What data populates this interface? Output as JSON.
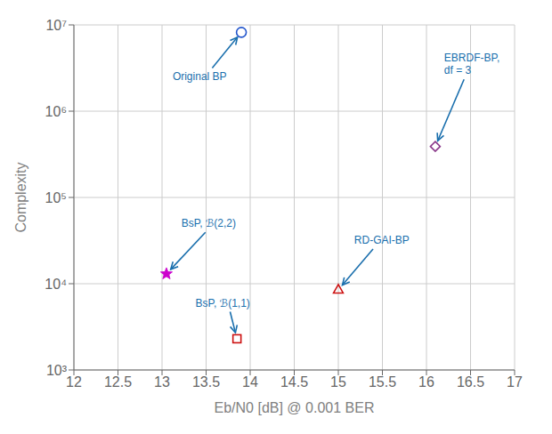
{
  "chart_data": {
    "type": "scatter",
    "xlabel": "Eb/N0 [dB] @ 0.001 BER",
    "ylabel": "Complexity",
    "log": "y",
    "grid": true,
    "xlim": [
      12,
      17
    ],
    "xticks": [
      12,
      12.5,
      13,
      13.5,
      14,
      14.5,
      15,
      15.5,
      16,
      16.5,
      17
    ],
    "ylim": [
      1000,
      10000000
    ],
    "yticks": [
      {
        "value": 1000,
        "label": "10³"
      },
      {
        "value": 10000,
        "label": "10⁴"
      },
      {
        "value": 100000,
        "label": "10⁵"
      },
      {
        "value": 1000000,
        "label": "10⁶"
      },
      {
        "value": 10000000,
        "label": "10⁷"
      }
    ],
    "points": [
      {
        "x": 13.9,
        "y": 8200000,
        "color": "#2255cc",
        "marker": "circle-open"
      },
      {
        "x": 16.1,
        "y": 390000,
        "color": "#8b3a8b",
        "marker": "diamond-open"
      },
      {
        "x": 13.05,
        "y": 13000,
        "color": "#cc00cc",
        "marker": "star"
      },
      {
        "x": 13.85,
        "y": 2300,
        "color": "#cc1111",
        "marker": "square-open"
      },
      {
        "x": 15.0,
        "y": 8500,
        "color": "#cc1111",
        "marker": "triangle-open"
      }
    ],
    "annotations": [
      {
        "text": "Original BP",
        "x": 13.9,
        "y": 8200000,
        "text_x": 13.12,
        "text_y": 2500000,
        "color": "#1a6fad"
      },
      {
        "text": "EBRDF-BP,\ndf = 3",
        "x": 16.1,
        "y": 390000,
        "text_x": 16.2,
        "text_y": 3500000,
        "color": "#1a6fad"
      },
      {
        "text": "BsP, ℬ(2,2)",
        "x": 13.05,
        "y": 13000,
        "text_x": 13.22,
        "text_y": 50000,
        "color": "#1a6fad"
      },
      {
        "text": "BsP, ℬ(1,1)",
        "x": 13.85,
        "y": 2300,
        "text_x": 13.38,
        "text_y": 6000,
        "color": "#1a6fad"
      },
      {
        "text": "RD-GAI-BP",
        "x": 15.0,
        "y": 8500,
        "text_x": 15.18,
        "text_y": 32000,
        "color": "#1a6fad"
      }
    ]
  }
}
